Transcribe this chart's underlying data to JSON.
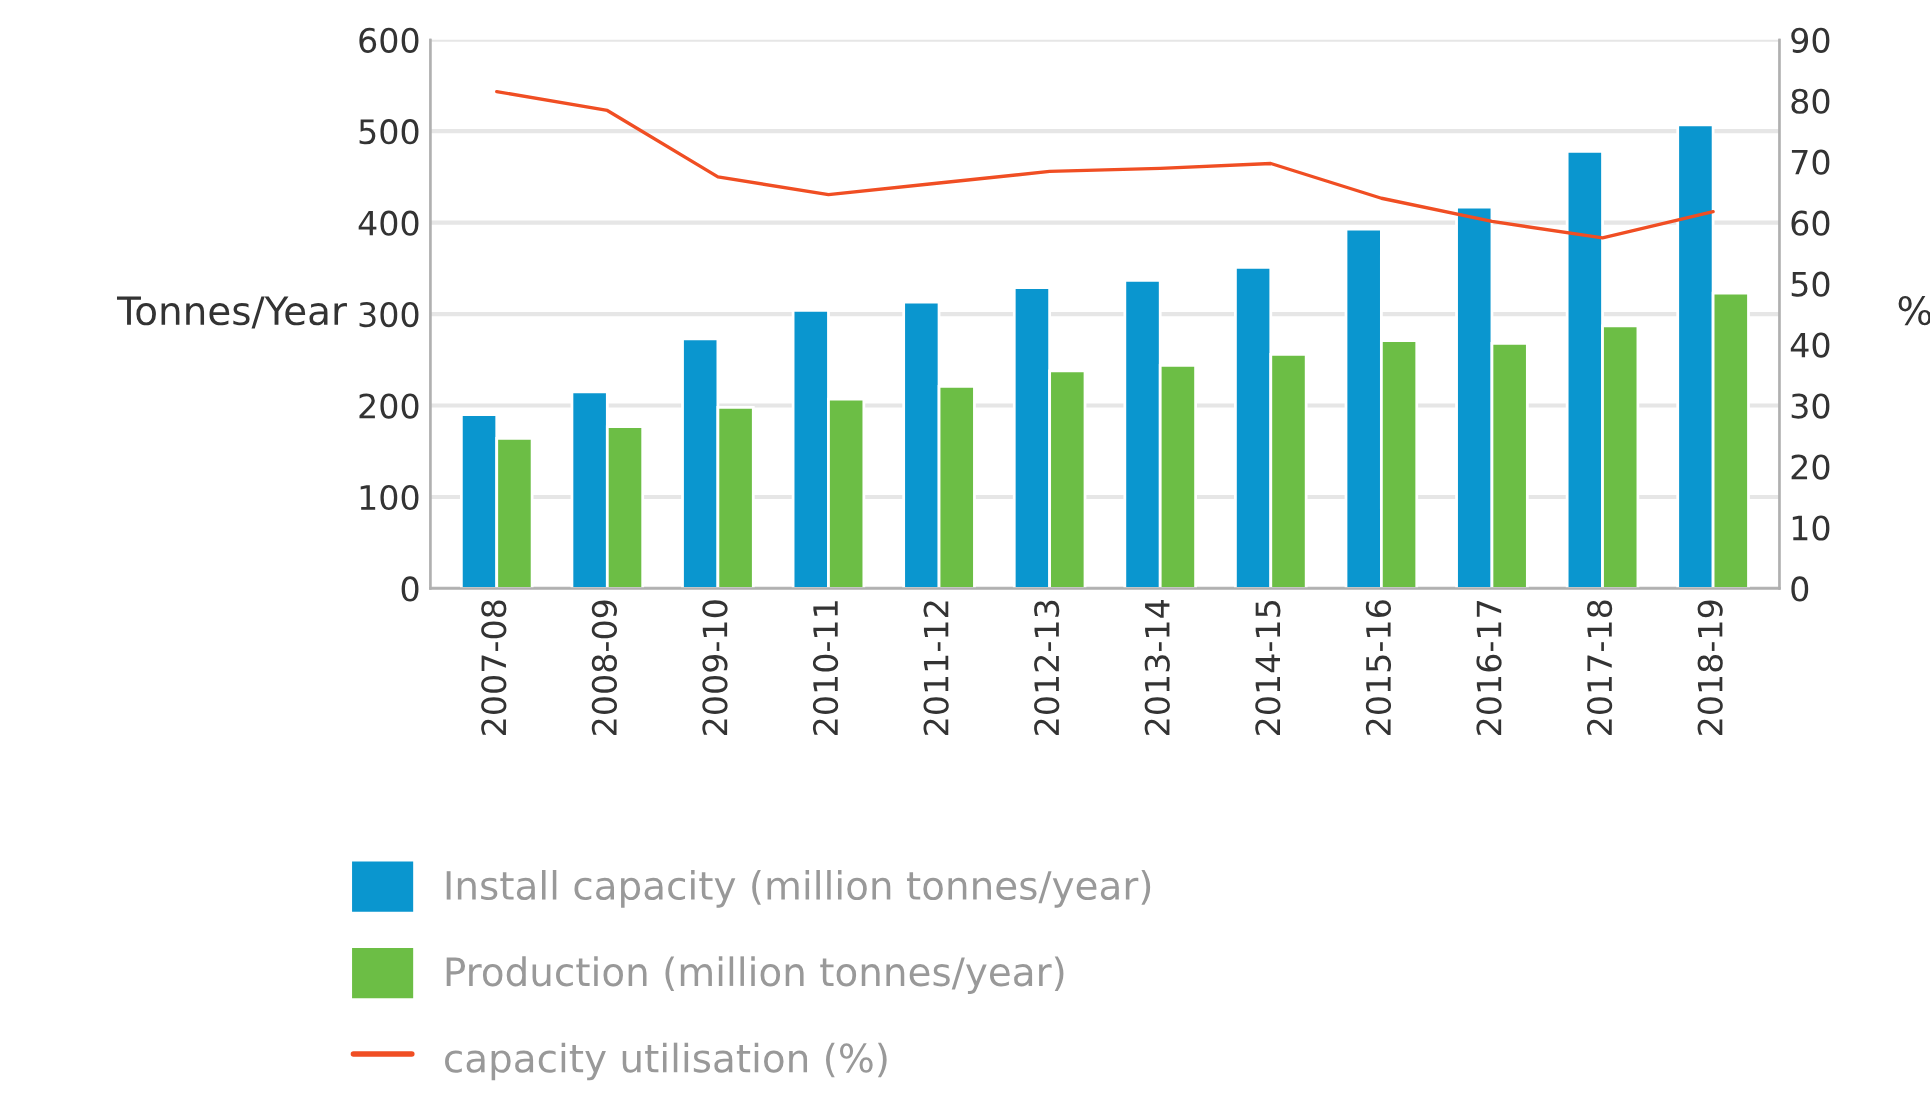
{
  "chart_data": {
    "type": "bar",
    "ylabel": "Tonnes/Year",
    "y2label": "%",
    "categories": [
      "2007-08",
      "2008-09",
      "2009-10",
      "2010-11",
      "2011-12",
      "2012-13",
      "2013-14",
      "2014-15",
      "2015-16",
      "2016-17",
      "2017-18",
      "2018-19"
    ],
    "series": [
      {
        "name": "Install capacity (million tonnes/year)",
        "color": "#0a96cf",
        "values": [
          190,
          215,
          273,
          304,
          313,
          329,
          337,
          351,
          393,
          417,
          478,
          507
        ]
      },
      {
        "name": "Production (million tonnes/year)",
        "color": "#6cbe45",
        "values": [
          164,
          177,
          198,
          207,
          221,
          238,
          244,
          256,
          271,
          268,
          287,
          323
        ]
      },
      {
        "name": "capacity utilisation (%)",
        "type": "line",
        "axis": "y2",
        "color": "#f04e23",
        "values": [
          81.5,
          78.4,
          67.5,
          64.6,
          66.5,
          68.4,
          68.9,
          69.7,
          64,
          60.2,
          57.5,
          61.8
        ]
      }
    ],
    "ylim": [
      0,
      600
    ],
    "yticks": [
      0,
      100,
      200,
      300,
      400,
      500,
      600
    ],
    "y2lim": [
      0,
      90
    ],
    "y2ticks": [
      0,
      10,
      20,
      30,
      40,
      50,
      60,
      70,
      80,
      90
    ],
    "grid": "y",
    "legend": "bottom",
    "marker": "none",
    "line_style": "solid"
  }
}
